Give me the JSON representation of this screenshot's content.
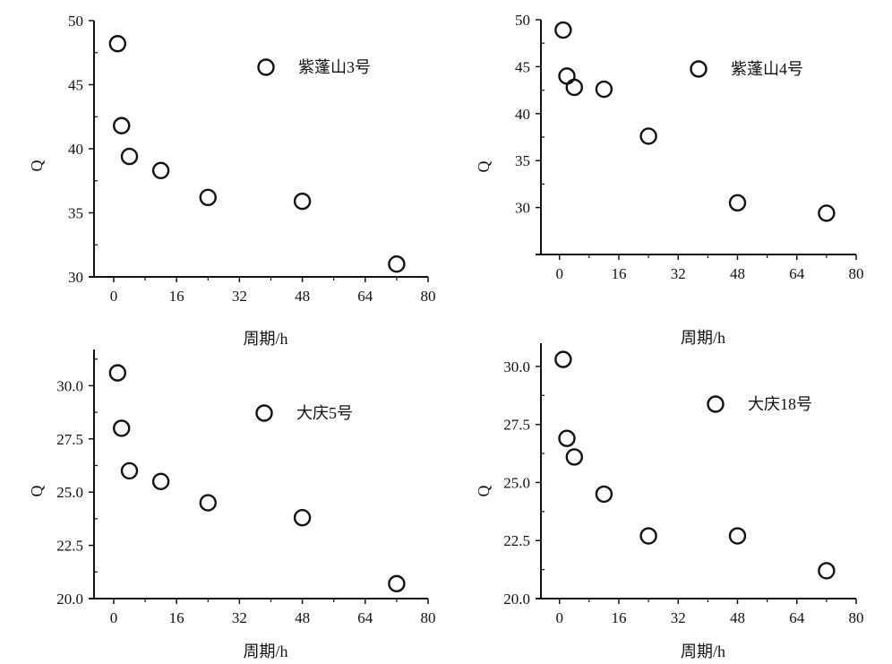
{
  "chart_data": [
    {
      "type": "scatter",
      "legend": "紫蓬山3号",
      "legend_placement": "top-right",
      "xlabel": "周期/h",
      "ylabel": "Q",
      "xlim": [
        -5,
        80
      ],
      "ylim": [
        30,
        50
      ],
      "xticks": [
        "0",
        "16",
        "32",
        "48",
        "64",
        "80"
      ],
      "yticks": [
        "30",
        "35",
        "40",
        "45",
        "50"
      ],
      "x": [
        1,
        2,
        4,
        12,
        24,
        48,
        72
      ],
      "y": [
        48.2,
        41.8,
        39.4,
        38.3,
        36.2,
        35.9,
        31.0
      ]
    },
    {
      "type": "scatter",
      "legend": "紫蓬山4号",
      "legend_placement": "top-right",
      "xlabel": "周期/h",
      "ylabel": "Q",
      "xlim": [
        -5,
        80
      ],
      "ylim": [
        25,
        50
      ],
      "xticks": [
        "0",
        "16",
        "32",
        "48",
        "64",
        "80"
      ],
      "yticks": [
        "30",
        "35",
        "40",
        "45",
        "50"
      ],
      "x": [
        1,
        2,
        4,
        12,
        24,
        48,
        72
      ],
      "y": [
        48.9,
        44.0,
        42.8,
        42.6,
        37.6,
        30.5,
        29.4
      ]
    },
    {
      "type": "scatter",
      "legend": "大庆5号",
      "legend_placement": "top-right",
      "xlabel": "周期/h",
      "ylabel": "Q",
      "xlim": [
        -5,
        80
      ],
      "ylim": [
        20,
        31.7
      ],
      "xticks": [
        "0",
        "16",
        "32",
        "48",
        "64",
        "80"
      ],
      "yticks": [
        "20.0",
        "22.5",
        "25.0",
        "27.5",
        "30.0"
      ],
      "x": [
        1,
        2,
        4,
        12,
        24,
        48,
        72
      ],
      "y": [
        30.6,
        28.0,
        26.0,
        25.5,
        24.5,
        23.8,
        20.7
      ]
    },
    {
      "type": "scatter",
      "legend": "大庆18号",
      "legend_placement": "top-right",
      "xlabel": "周期/h",
      "ylabel": "Q",
      "xlim": [
        -5,
        80
      ],
      "ylim": [
        20,
        31.0
      ],
      "xticks": [
        "0",
        "16",
        "32",
        "48",
        "64",
        "80"
      ],
      "yticks": [
        "20.0",
        "22.5",
        "25.0",
        "27.5",
        "30.0"
      ],
      "x": [
        1,
        2,
        4,
        12,
        24,
        48,
        72
      ],
      "y": [
        30.3,
        26.9,
        26.1,
        24.5,
        22.7,
        22.7,
        21.2
      ]
    }
  ]
}
